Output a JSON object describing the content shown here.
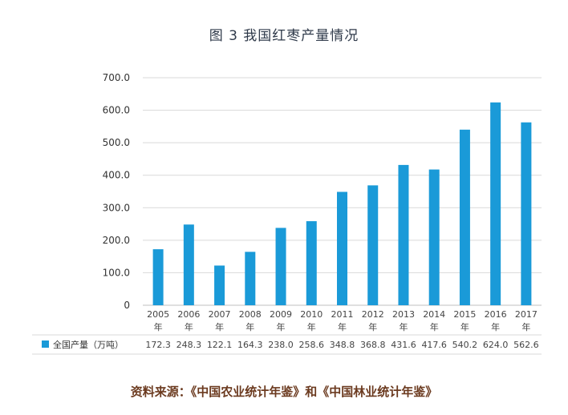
{
  "title": "图 3  我国红枣产量情况",
  "source": "资料来源：《中国农业统计年鉴》和《中国林业统计年鉴》",
  "colors": {
    "bar": "#1a9ad8",
    "grid": "#d9d9d9",
    "axis": "#bfbfbf"
  },
  "chart_data": {
    "type": "bar",
    "categories": [
      [
        "2005",
        "年"
      ],
      [
        "2006",
        "年"
      ],
      [
        "2007",
        "年"
      ],
      [
        "2008",
        "年"
      ],
      [
        "2009",
        "年"
      ],
      [
        "2010",
        "年"
      ],
      [
        "2011",
        "年"
      ],
      [
        "2012",
        "年"
      ],
      [
        "2013",
        "年"
      ],
      [
        "2014",
        "年"
      ],
      [
        "2015",
        "年"
      ],
      [
        "2016",
        "年"
      ],
      [
        "2017",
        "年"
      ]
    ],
    "series": [
      {
        "name": "全国产量（万吨）",
        "values": [
          172.3,
          248.3,
          122.1,
          164.3,
          238.0,
          258.6,
          348.8,
          368.8,
          431.6,
          417.6,
          540.2,
          624.0,
          562.6
        ],
        "value_labels": [
          "172.3",
          "248.3",
          "122.1",
          "164.3",
          "238.0",
          "258.6",
          "348.8",
          "368.8",
          "431.6",
          "417.6",
          "540.2",
          "624.0",
          "562.6"
        ]
      }
    ],
    "y_ticks": [
      "0",
      "100.0",
      "200.0",
      "300.0",
      "400.0",
      "500.0",
      "600.0",
      "700.0"
    ],
    "ylim": [
      0,
      700
    ],
    "legend": "bottom-left data table",
    "grid": true
  }
}
